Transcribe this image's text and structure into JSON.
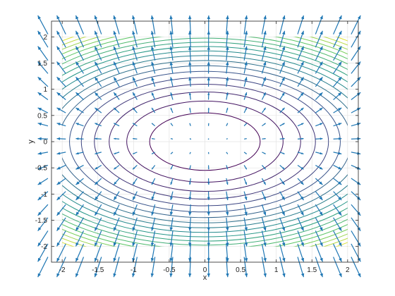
{
  "chart_data": {
    "type": "contour",
    "title": "",
    "xlabel": "x",
    "ylabel": "y",
    "xlim": [
      -2.15,
      2.15
    ],
    "ylim": [
      -2.3,
      2.3
    ],
    "grid": true,
    "x_ticks": [
      -2,
      -1.5,
      -1,
      -0.5,
      0,
      0.5,
      1,
      1.5,
      2
    ],
    "x_tick_labels": [
      "-2",
      "-1.5",
      "-1",
      "-0.5",
      "0",
      "0.5",
      "1",
      "1.5",
      "2"
    ],
    "y_ticks": [
      -2,
      -1.5,
      -1,
      -0.5,
      0,
      0.5,
      1,
      1.5,
      2
    ],
    "y_tick_labels": [
      "-2",
      "-1.5",
      "-1",
      "-0.5",
      "0",
      "0.5",
      "1",
      "1.5",
      "2"
    ],
    "contour": {
      "function": "z = x^2 + 2*y^2",
      "levels": [
        0.6,
        1.2,
        1.8,
        2.4,
        3.0,
        3.6,
        4.2,
        4.8,
        5.4,
        6.0,
        6.6,
        7.2,
        7.8,
        8.4,
        9.0,
        9.6,
        10.2,
        10.8,
        11.4,
        12.0
      ],
      "x_range": [
        -2,
        2
      ],
      "y_range": [
        -2,
        2
      ],
      "colormap": [
        "#440154",
        "#3b528b",
        "#21918c",
        "#5ec962",
        "#fde725"
      ]
    },
    "quiver": {
      "field": "gradient of z: (u, v) = (2x, 4y)",
      "grid_x": [
        -2.2,
        -1.95,
        -1.7,
        -1.45,
        -1.2,
        -0.95,
        -0.7,
        -0.45,
        -0.2,
        0.05,
        0.3,
        0.55,
        0.8,
        1.05,
        1.3,
        1.55,
        1.8,
        2.05
      ],
      "grid_y": [
        -2.2,
        -1.95,
        -1.7,
        -1.45,
        -1.2,
        -0.95,
        -0.7,
        -0.45,
        -0.2,
        0.05,
        0.3,
        0.55,
        0.8,
        1.05,
        1.3,
        1.55,
        1.8,
        2.05
      ],
      "color": "#1f77b4"
    }
  }
}
